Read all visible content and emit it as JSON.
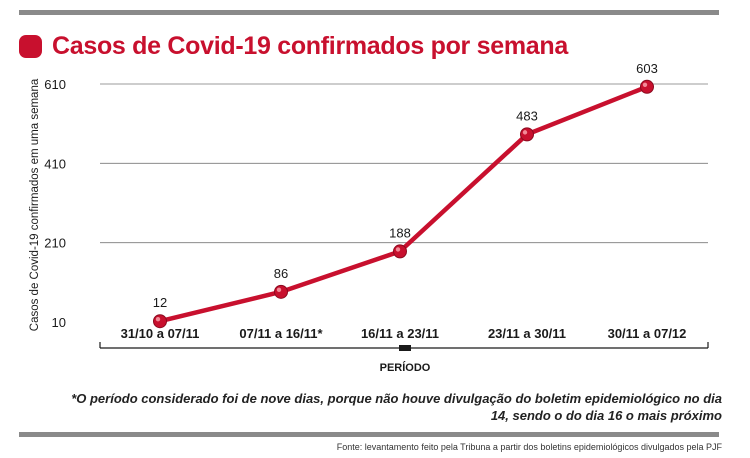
{
  "header": {
    "title": "Casos de Covid-19 confirmados por semana"
  },
  "chart_data": {
    "type": "line",
    "title": "Casos de Covid-19 confirmados por semana",
    "xlabel": "PERÍODO",
    "ylabel": "Casos de Covid-19 confirmados em uma semana",
    "categories": [
      "31/10 a 07/11",
      "07/11 a 16/11*",
      "16/11 a 23/11",
      "23/11 a 30/11",
      "30/11 a 07/12"
    ],
    "values": [
      12,
      86,
      188,
      483,
      603
    ],
    "yticks": [
      10,
      210,
      410,
      610
    ],
    "ylim": [
      10,
      610
    ],
    "grid": true,
    "data_labels": true,
    "line_color": "#c8102e"
  },
  "footer": {
    "note": "*O período considerado foi de nove dias, porque não houve divulgação do boletim epidemiológico no dia 14, sendo o do dia 16 o mais próximo",
    "source": "Fonte: levantamento feito pela Tribuna a partir dos boletins epidemiológicos divulgados pela PJF"
  }
}
